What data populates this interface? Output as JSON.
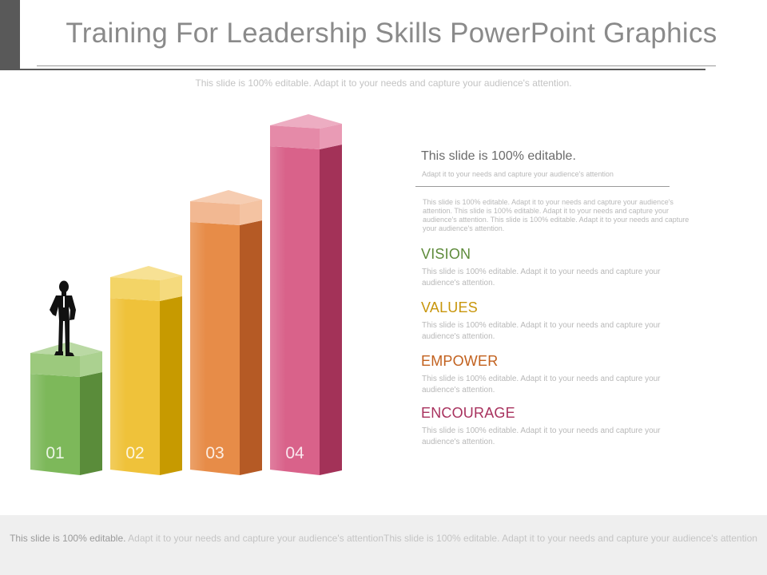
{
  "title": "Training For Leadership Skills PowerPoint Graphics",
  "subtitle": "This slide is 100% editable. Adapt it to your needs and capture your audience's attention.",
  "bars": [
    {
      "label": "01",
      "level": 1,
      "side_color": "#5a8c3a",
      "front_color": "#7db85a",
      "top_color": "#9cc97d"
    },
    {
      "label": "02",
      "level": 2,
      "side_color": "#c79a00",
      "front_color": "#efc23a",
      "top_color": "#f3d466"
    },
    {
      "label": "03",
      "level": 3,
      "side_color": "#b55a25",
      "front_color": "#e78c48",
      "top_color": "#f2b892"
    },
    {
      "label": "04",
      "level": 4,
      "side_color": "#a33258",
      "front_color": "#d9628a",
      "top_color": "#e58aa8"
    }
  ],
  "panel": {
    "heading": "This slide is 100% editable.",
    "subheading": "Adapt it to your needs and capture your audience's attention",
    "body": "This slide is 100% editable. Adapt it to your needs and capture your audience's attention. This slide is 100% editable. Adapt it to your needs and capture your audience's attention. This slide is 100% editable. Adapt it to your needs and capture your audience's attention."
  },
  "items": [
    {
      "heading": "VISION",
      "color": "#5e8b3b",
      "text": "This slide is 100% editable. Adapt it to your needs and capture your audience's attention."
    },
    {
      "heading": "VALUES",
      "color": "#c8960c",
      "text": "This slide is 100% editable. Adapt it to your needs and capture your audience's attention."
    },
    {
      "heading": "EMPOWER",
      "color": "#c2611e",
      "text": "This slide is 100% editable. Adapt it to your needs and capture your audience's attention."
    },
    {
      "heading": "ENCOURAGE",
      "color": "#a8325e",
      "text": "This slide is 100% editable. Adapt it to your needs and capture your audience's attention."
    }
  ],
  "footer": {
    "lead": "This slide is 100% editable.",
    "rest": " Adapt it to your needs and capture your audience's attentionThis slide is 100% editable. Adapt it to your needs and capture your audience's attention"
  },
  "icons": {
    "person": "businessman-silhouette-icon"
  }
}
